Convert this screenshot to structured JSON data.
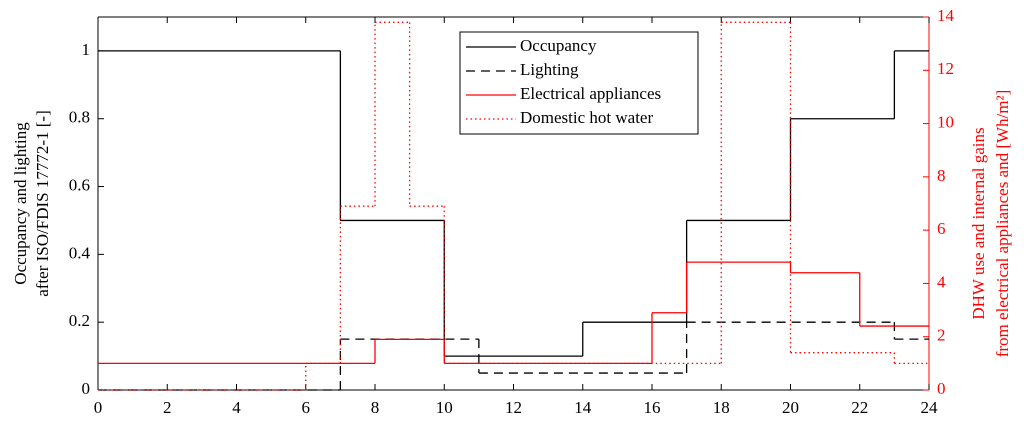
{
  "chart_data": {
    "type": "step",
    "ylabel": [
      "Occupancy and lighting",
      "after ISO/FDIS 17772-1 [-]"
    ],
    "y2label": [
      "DHW use and internal gains",
      "from electrical appliances and [Wh/m²]"
    ],
    "xlim": [
      0,
      24
    ],
    "xticks": [
      0,
      2,
      4,
      6,
      8,
      10,
      12,
      14,
      16,
      18,
      20,
      22,
      24
    ],
    "ylim": [
      0,
      1.1
    ],
    "yticks": [
      0,
      0.2,
      0.4,
      0.6,
      0.8,
      1
    ],
    "y2lim": [
      0,
      14
    ],
    "y2ticks": [
      0,
      2,
      4,
      6,
      8,
      10,
      12,
      14
    ],
    "y2color": "#ff0000",
    "series": [
      {
        "name": "Occupancy",
        "color": "#000000",
        "linestyle": "solid",
        "x": [
          0,
          7,
          10,
          14,
          17,
          20,
          23
        ],
        "values": [
          1,
          0.5,
          0.1,
          0.2,
          0.5,
          0.8,
          1
        ]
      },
      {
        "name": "Lighting",
        "color": "#000000",
        "linestyle": "dashed",
        "x": [
          0,
          7,
          11,
          17,
          23
        ],
        "values": [
          0,
          0.15,
          0.05,
          0.2,
          0.15
        ]
      },
      {
        "name": "Electrical appliances",
        "color": "#ff0000",
        "linestyle": "solid",
        "axis": "y2",
        "x": [
          0,
          8,
          10,
          16,
          17,
          20,
          22
        ],
        "values": [
          1,
          1.9,
          1,
          2.9,
          4.8,
          4.4,
          2.4
        ]
      },
      {
        "name": "Domestic hot water",
        "color": "#ff0000",
        "linestyle": "dotted",
        "axis": "y2",
        "x": [
          0,
          6,
          7,
          8,
          9,
          10,
          18,
          20,
          23
        ],
        "values": [
          0,
          1,
          6.9,
          13.8,
          6.9,
          1,
          13.8,
          1.4,
          1
        ]
      }
    ]
  }
}
